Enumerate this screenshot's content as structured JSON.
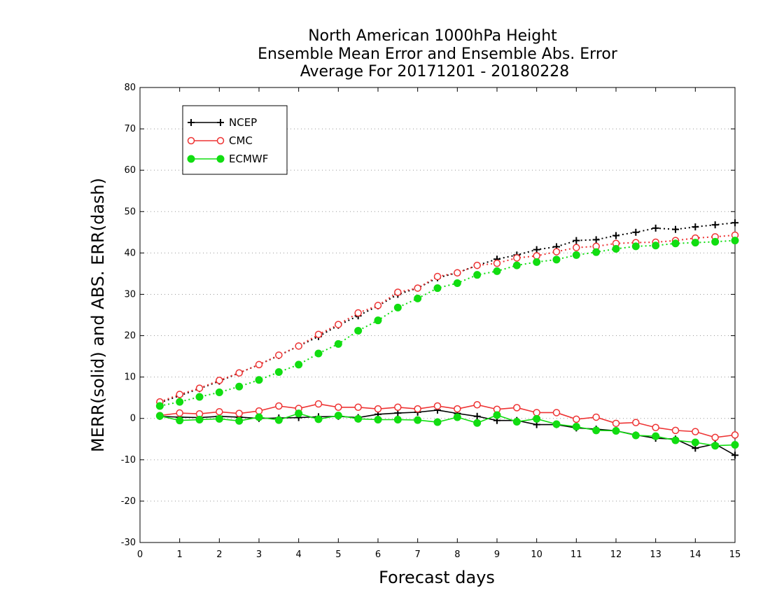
{
  "chart_data": {
    "type": "line",
    "title_lines": [
      "North American 1000hPa Height",
      "Ensemble Mean Error and Ensemble Abs. Error",
      "Average For 20171201 - 20180228"
    ],
    "xlabel": "Forecast days",
    "ylabel": "MERR(solid) and ABS. ERR(dash)",
    "xlim": [
      0,
      15
    ],
    "ylim": [
      -30,
      80
    ],
    "x_ticks": [
      "0",
      "1",
      "2",
      "3",
      "4",
      "5",
      "6",
      "7",
      "8",
      "9",
      "10",
      "11",
      "12",
      "13",
      "14",
      "15"
    ],
    "y_ticks": [
      "-30",
      "-20",
      "-10",
      "0",
      "10",
      "20",
      "30",
      "40",
      "50",
      "60",
      "70",
      "80"
    ],
    "grid": true,
    "legend_position": "top-left",
    "x": [
      0.5,
      1,
      1.5,
      2,
      2.5,
      3,
      3.5,
      4,
      4.5,
      5,
      5.5,
      6,
      6.5,
      7,
      7.5,
      8,
      8.5,
      9,
      9.5,
      10,
      10.5,
      11,
      11.5,
      12,
      12.5,
      13,
      13.5,
      14,
      14.5,
      15
    ],
    "series": [
      {
        "name": "NCEP",
        "color": "#000000",
        "marker": "plus",
        "mean_error": [
          0.5,
          0.3,
          0.2,
          0.5,
          0.3,
          0.0,
          0.1,
          0.2,
          0.4,
          0.5,
          0.2,
          1.0,
          1.3,
          1.5,
          2.0,
          1.2,
          0.5,
          -0.5,
          -0.5,
          -1.5,
          -1.5,
          -2.3,
          -2.6,
          -3.0,
          -4.0,
          -4.8,
          -5.0,
          -7.2,
          -6.2,
          -8.9
        ],
        "abs_error": [
          3.8,
          5.5,
          7.2,
          9.0,
          11.0,
          13.0,
          15.2,
          17.5,
          19.8,
          22.5,
          24.8,
          27.2,
          30.0,
          31.5,
          34.0,
          35.2,
          37.0,
          38.5,
          39.5,
          40.8,
          41.5,
          43.0,
          43.2,
          44.2,
          45.0,
          46.0,
          45.7,
          46.3,
          46.8,
          47.3
        ]
      },
      {
        "name": "CMC",
        "color": "#ee3333",
        "marker": "circle-open",
        "mean_error": [
          0.7,
          1.3,
          1.1,
          1.6,
          1.2,
          1.8,
          3.0,
          2.4,
          3.5,
          2.7,
          2.7,
          2.3,
          2.7,
          2.3,
          3.0,
          2.3,
          3.3,
          2.2,
          2.6,
          1.4,
          1.4,
          -0.2,
          0.3,
          -1.2,
          -1.0,
          -2.2,
          -2.9,
          -3.2,
          -4.6,
          -4.0
        ],
        "abs_error": [
          4.0,
          5.8,
          7.3,
          9.2,
          11.0,
          13.0,
          15.3,
          17.5,
          20.3,
          22.7,
          25.5,
          27.3,
          30.5,
          31.5,
          34.3,
          35.2,
          37.0,
          37.5,
          38.8,
          39.3,
          40.3,
          41.3,
          41.6,
          42.3,
          42.5,
          42.6,
          43.0,
          43.6,
          43.9,
          44.3
        ]
      },
      {
        "name": "ECMWF",
        "color": "#11dd11",
        "marker": "circle-filled",
        "mean_error": [
          0.6,
          -0.5,
          -0.3,
          -0.1,
          -0.6,
          0.3,
          -0.4,
          1.2,
          -0.2,
          0.7,
          -0.1,
          -0.3,
          -0.3,
          -0.4,
          -0.9,
          0.3,
          -1.1,
          0.8,
          -0.8,
          -0.1,
          -1.4,
          -2.0,
          -2.9,
          -3.0,
          -4.1,
          -4.3,
          -5.3,
          -5.8,
          -6.6,
          -6.4
        ],
        "abs_error": [
          3.0,
          4.0,
          5.2,
          6.3,
          7.7,
          9.3,
          11.2,
          13.0,
          15.7,
          18.0,
          21.2,
          23.7,
          26.8,
          29.0,
          31.5,
          32.7,
          34.7,
          35.6,
          37.0,
          37.8,
          38.4,
          39.5,
          40.2,
          41.0,
          41.6,
          41.8,
          42.3,
          42.5,
          42.7,
          43.0
        ]
      }
    ]
  }
}
